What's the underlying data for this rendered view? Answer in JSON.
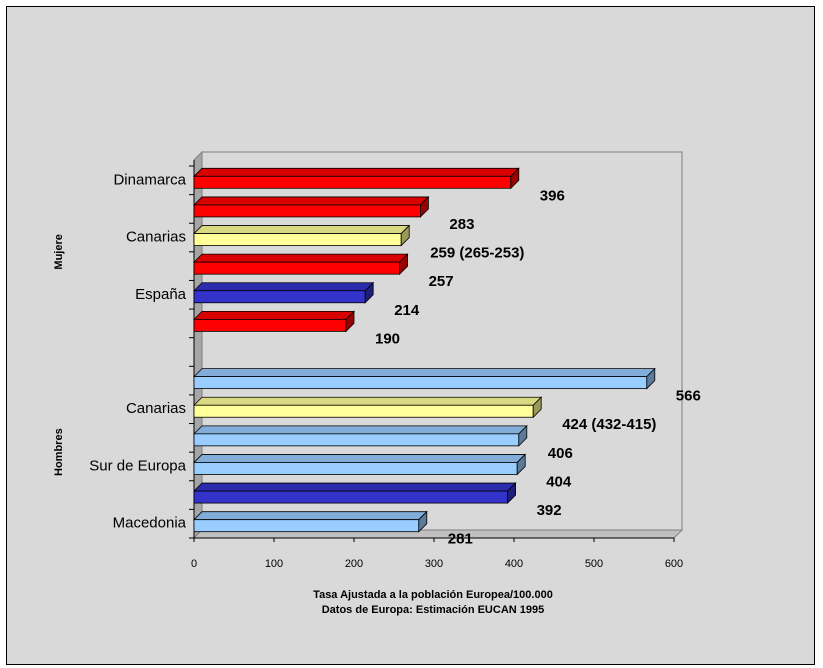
{
  "colors": {
    "background": "#d9d9d9",
    "red": "#ff0000",
    "yellow": "#ffff99",
    "dark_blue": "#3333cc",
    "light_blue": "#99ccff"
  },
  "chart_data": {
    "type": "bar",
    "orientation": "horizontal",
    "three_d": true,
    "xlim": [
      0,
      600
    ],
    "x_ticks": [
      "0",
      "100",
      "200",
      "300",
      "400",
      "500",
      "600"
    ],
    "xlabel_lines": [
      "Tasa Ajustada a la población Europea/100.000",
      "Datos de Europa: Estimación EUCAN 1995"
    ],
    "groups": [
      {
        "name": "Mujere",
        "bars": [
          {
            "label": "Dinamarca",
            "value": 396,
            "display": "396",
            "color": "red"
          },
          {
            "label": "",
            "value": 283,
            "display": "283",
            "color": "red"
          },
          {
            "label": "Canarias",
            "value": 259,
            "display": "259 (265-253)",
            "color": "yellow"
          },
          {
            "label": "",
            "value": 257,
            "display": "257",
            "color": "red"
          },
          {
            "label": "España",
            "value": 214,
            "display": "214",
            "color": "dark_blue"
          },
          {
            "label": "",
            "value": 190,
            "display": "190",
            "color": "red"
          }
        ]
      },
      {
        "name": "Hombres",
        "bars": [
          {
            "label": "",
            "value": 566,
            "display": "566",
            "color": "light_blue"
          },
          {
            "label": "Canarias",
            "value": 424,
            "display": "424 (432-415)",
            "color": "yellow"
          },
          {
            "label": "",
            "value": 406,
            "display": "406",
            "color": "light_blue"
          },
          {
            "label": "Sur de Europa",
            "value": 404,
            "display": "404",
            "color": "light_blue"
          },
          {
            "label": "",
            "value": 392,
            "display": "392",
            "color": "dark_blue"
          },
          {
            "label": "Macedonia",
            "value": 281,
            "display": "281",
            "color": "light_blue"
          }
        ]
      }
    ]
  }
}
